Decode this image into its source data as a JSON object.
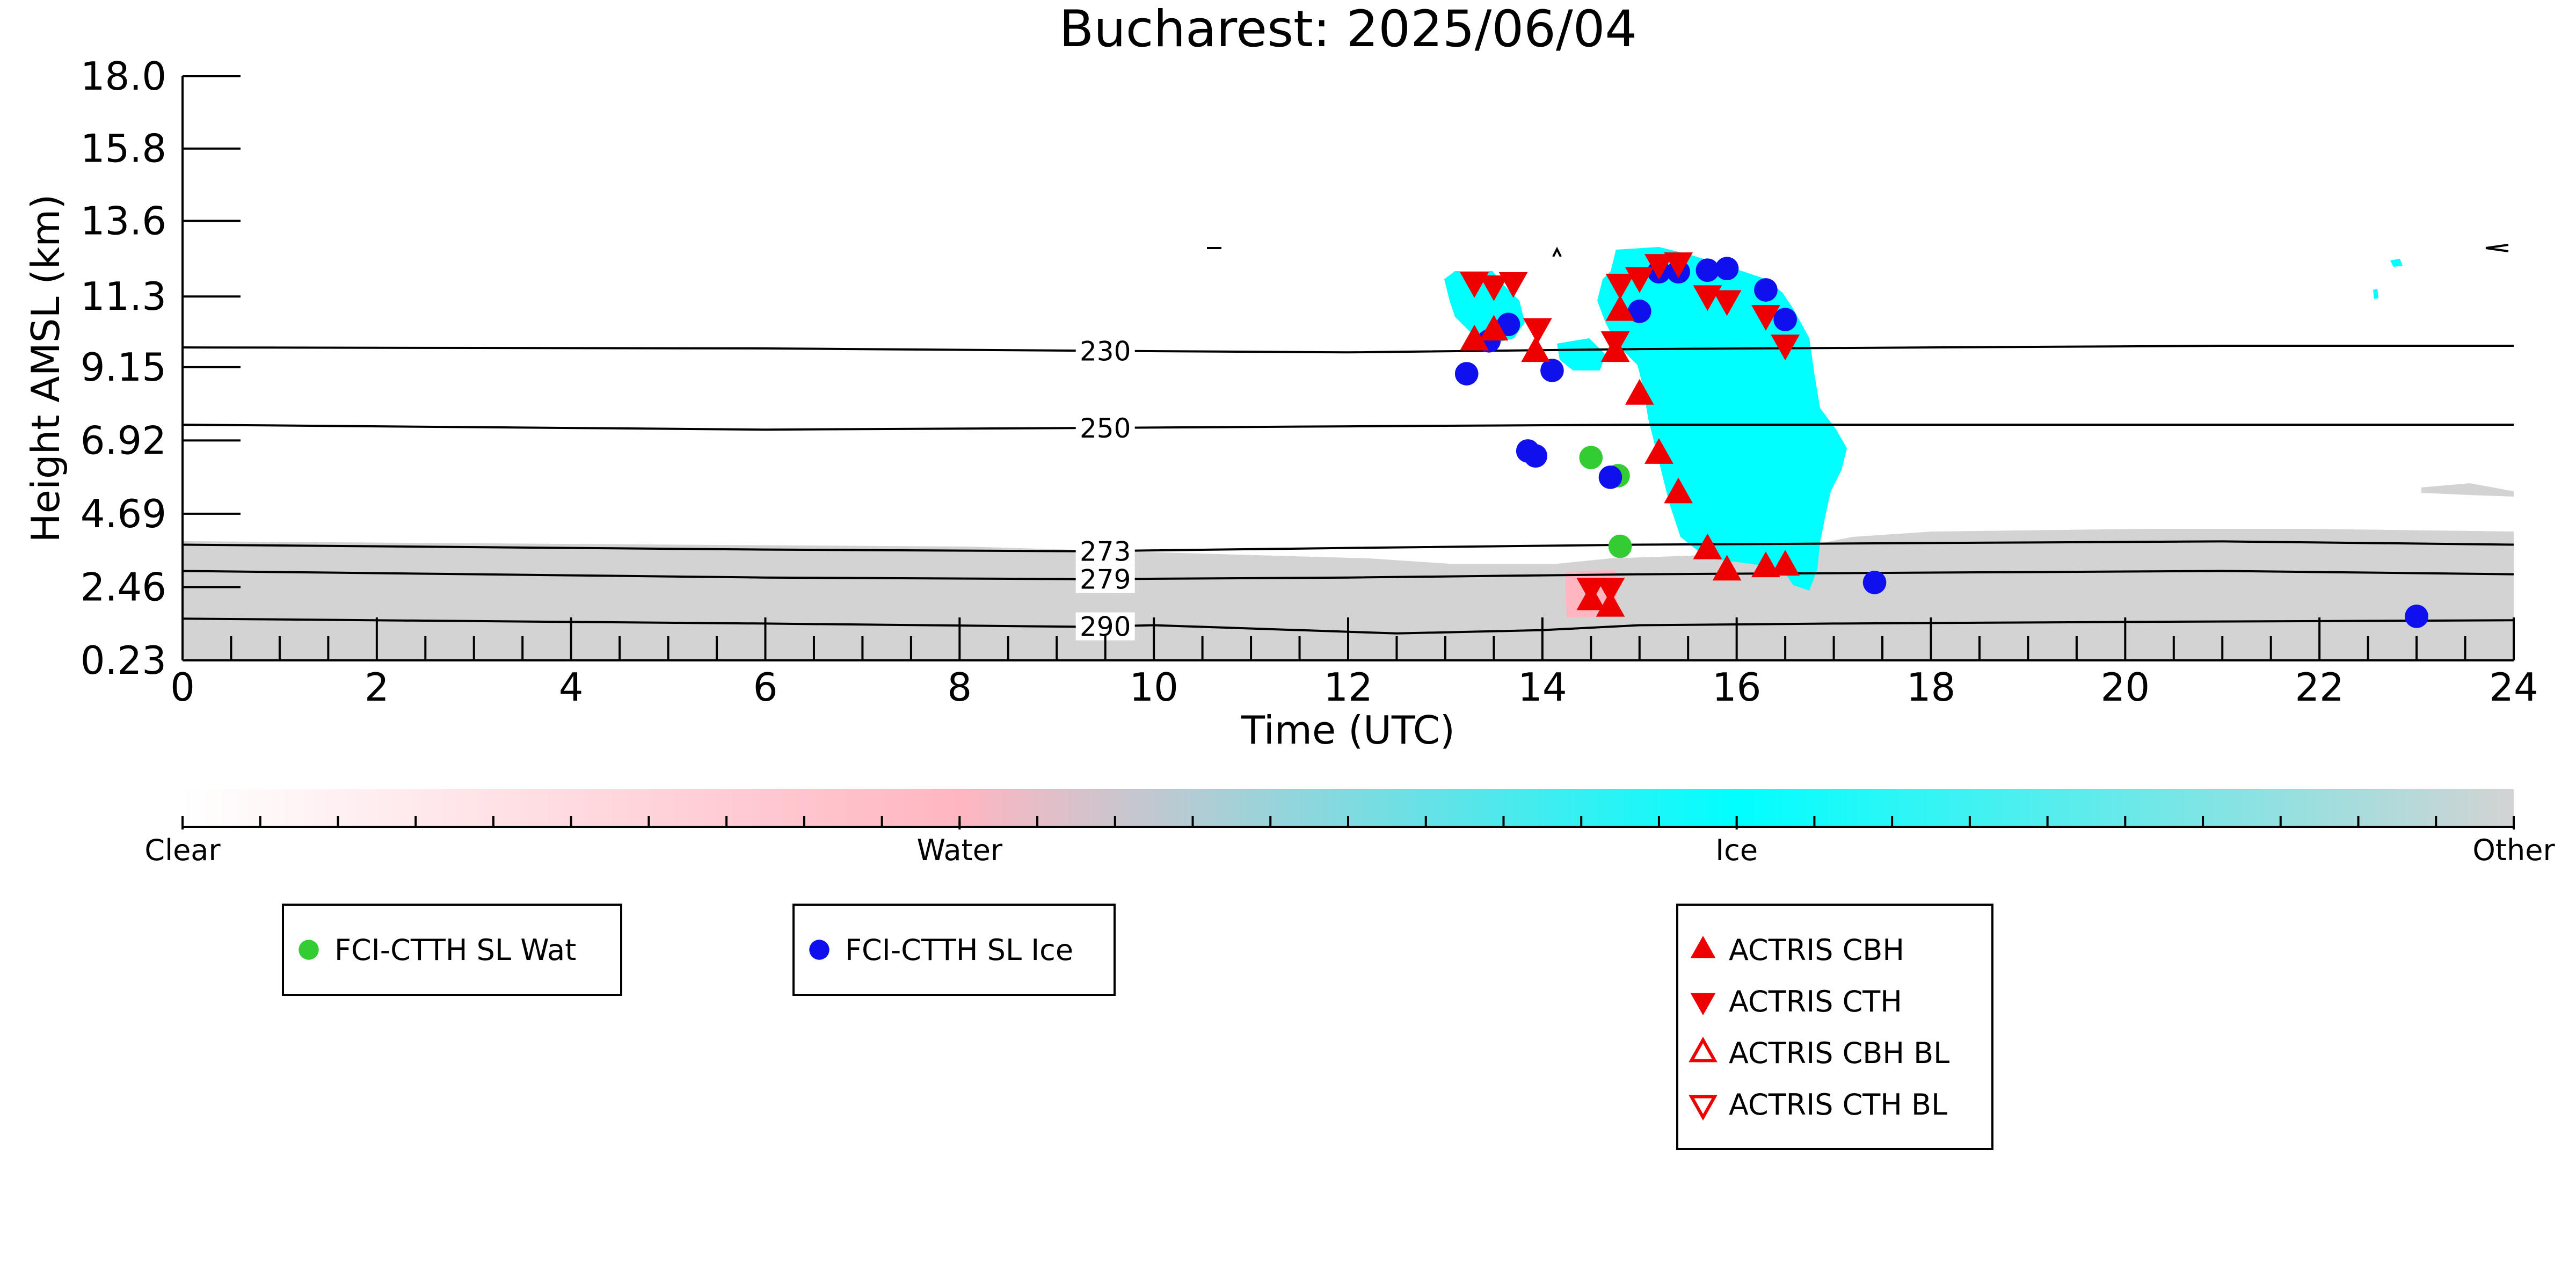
{
  "chart_data": {
    "type": "scatter",
    "title": "Bucharest: 2025/06/04",
    "xlabel": "Time (UTC)",
    "ylabel": "Height AMSL (km)",
    "xlim": [
      0,
      24
    ],
    "ylim": [
      0.23,
      18.0
    ],
    "x_ticks": [
      "0",
      "2",
      "4",
      "6",
      "8",
      "10",
      "12",
      "14",
      "16",
      "18",
      "20",
      "22",
      "24"
    ],
    "y_ticks": [
      "0.23",
      "2.46",
      "4.69",
      "6.92",
      "9.15",
      "11.3",
      "13.6",
      "15.8",
      "18.0"
    ],
    "grid": false,
    "isotherms": [
      {
        "label": "230",
        "label_x": 9.5,
        "points": [
          [
            0,
            9.75
          ],
          [
            6,
            9.72
          ],
          [
            9.3,
            9.65
          ],
          [
            12,
            9.6
          ],
          [
            15,
            9.7
          ],
          [
            18,
            9.75
          ],
          [
            21,
            9.8
          ],
          [
            24,
            9.8
          ]
        ]
      },
      {
        "label": "250",
        "label_x": 9.5,
        "points": [
          [
            0,
            7.4
          ],
          [
            6,
            7.25
          ],
          [
            9.3,
            7.3
          ],
          [
            12,
            7.35
          ],
          [
            15,
            7.4
          ],
          [
            18,
            7.4
          ],
          [
            21,
            7.4
          ],
          [
            24,
            7.4
          ]
        ]
      },
      {
        "label": "273",
        "label_x": 9.5,
        "points": [
          [
            0,
            3.75
          ],
          [
            6,
            3.6
          ],
          [
            9.3,
            3.55
          ],
          [
            12,
            3.65
          ],
          [
            15,
            3.75
          ],
          [
            18,
            3.8
          ],
          [
            21,
            3.85
          ],
          [
            24,
            3.75
          ]
        ]
      },
      {
        "label": "279",
        "label_x": 9.5,
        "points": [
          [
            0,
            2.95
          ],
          [
            6,
            2.75
          ],
          [
            9.3,
            2.7
          ],
          [
            12,
            2.75
          ],
          [
            15,
            2.85
          ],
          [
            18,
            2.9
          ],
          [
            21,
            2.95
          ],
          [
            24,
            2.85
          ]
        ]
      },
      {
        "label": "290",
        "label_x": 9.5,
        "points": [
          [
            0,
            1.5
          ],
          [
            6,
            1.35
          ],
          [
            9.3,
            1.25
          ],
          [
            10,
            1.3
          ],
          [
            11,
            1.2
          ],
          [
            12.5,
            1.05
          ],
          [
            14,
            1.15
          ],
          [
            15,
            1.3
          ],
          [
            17,
            1.35
          ],
          [
            20,
            1.4
          ],
          [
            24,
            1.45
          ]
        ]
      }
    ],
    "series": [
      {
        "name": "FCI-CTTH SL Wat",
        "marker": "circle",
        "color": "#33cc33",
        "points": [
          [
            14.5,
            6.4
          ],
          [
            14.78,
            5.85
          ],
          [
            14.8,
            3.7
          ]
        ]
      },
      {
        "name": "FCI-CTTH SL Ice",
        "marker": "circle",
        "color": "#1010ee",
        "points": [
          [
            13.22,
            8.95
          ],
          [
            13.45,
            9.95
          ],
          [
            13.65,
            10.45
          ],
          [
            13.85,
            6.6
          ],
          [
            13.93,
            6.45
          ],
          [
            14.1,
            9.05
          ],
          [
            14.7,
            5.8
          ],
          [
            15.0,
            10.85
          ],
          [
            15.2,
            12.05
          ],
          [
            15.4,
            12.05
          ],
          [
            15.7,
            12.1
          ],
          [
            15.9,
            12.15
          ],
          [
            16.3,
            11.5
          ],
          [
            16.5,
            10.6
          ],
          [
            17.42,
            2.6
          ],
          [
            23.0,
            1.57
          ]
        ]
      },
      {
        "name": "ACTRIS CBH",
        "marker": "triangle-up",
        "color": "#ee0000",
        "points": [
          [
            13.3,
            9.95
          ],
          [
            13.5,
            10.25
          ],
          [
            13.93,
            9.6
          ],
          [
            14.5,
            2.05
          ],
          [
            14.7,
            1.85
          ],
          [
            14.75,
            9.6
          ],
          [
            14.8,
            10.85
          ],
          [
            15.0,
            8.3
          ],
          [
            15.2,
            6.5
          ],
          [
            15.4,
            5.3
          ],
          [
            15.7,
            3.6
          ],
          [
            15.9,
            2.95
          ],
          [
            16.3,
            3.05
          ],
          [
            16.5,
            3.1
          ]
        ]
      },
      {
        "name": "ACTRIS CTH",
        "marker": "triangle-down",
        "color": "#ee0000",
        "points": [
          [
            13.3,
            11.75
          ],
          [
            13.5,
            11.65
          ],
          [
            13.7,
            11.75
          ],
          [
            13.95,
            10.35
          ],
          [
            14.5,
            2.45
          ],
          [
            14.7,
            2.45
          ],
          [
            14.75,
            9.95
          ],
          [
            14.8,
            11.7
          ],
          [
            15.0,
            11.9
          ],
          [
            15.2,
            12.3
          ],
          [
            15.4,
            12.35
          ],
          [
            15.7,
            11.35
          ],
          [
            15.9,
            11.2
          ],
          [
            16.3,
            10.75
          ],
          [
            16.5,
            9.85
          ]
        ]
      },
      {
        "name": "ACTRIS CBH BL",
        "marker": "triangle-up-open",
        "color": "#ee0000",
        "points": []
      },
      {
        "name": "ACTRIS CTH BL",
        "marker": "triangle-down-open",
        "color": "#ee0000",
        "points": []
      }
    ],
    "colorbar": {
      "labels": [
        "Clear",
        "Water",
        "Ice",
        "Other"
      ],
      "colors": [
        "#ffffff",
        "#ffb6c1",
        "#00ffff",
        "#d3d3d3"
      ]
    },
    "legend": {
      "placement": "below",
      "groups": [
        [
          "FCI-CTTH SL Wat"
        ],
        [
          "FCI-CTTH SL Ice"
        ],
        [
          "ACTRIS CBH",
          "ACTRIS CTH",
          "ACTRIS CBH BL",
          "ACTRIS CTH BL"
        ]
      ]
    }
  }
}
